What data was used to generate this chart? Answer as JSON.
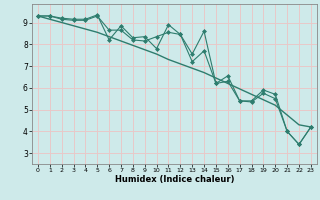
{
  "title": "",
  "xlabel": "Humidex (Indice chaleur)",
  "bg_color": "#ceeaea",
  "grid_color": "#e8c8c8",
  "line_color": "#2e7d6e",
  "xlim": [
    -0.5,
    23.5
  ],
  "ylim": [
    2.5,
    9.85
  ],
  "yticks": [
    3,
    4,
    5,
    6,
    7,
    8,
    9
  ],
  "xticks": [
    0,
    1,
    2,
    3,
    4,
    5,
    6,
    7,
    8,
    9,
    10,
    11,
    12,
    13,
    14,
    15,
    16,
    17,
    18,
    19,
    20,
    21,
    22,
    23
  ],
  "series1": [
    9.3,
    9.3,
    9.2,
    9.15,
    9.15,
    9.35,
    8.2,
    8.85,
    8.3,
    8.35,
    7.8,
    8.9,
    8.45,
    7.2,
    7.7,
    6.2,
    6.3,
    5.4,
    5.4,
    5.9,
    5.7,
    4.0,
    3.4,
    4.2
  ],
  "series2": [
    9.3,
    9.3,
    9.15,
    9.1,
    9.1,
    9.3,
    8.65,
    8.65,
    8.2,
    8.15,
    8.35,
    8.55,
    8.45,
    7.55,
    8.6,
    6.2,
    6.55,
    5.4,
    5.35,
    5.75,
    5.5,
    4.0,
    3.4,
    4.2
  ],
  "trend": [
    9.3,
    9.15,
    9.0,
    8.85,
    8.7,
    8.55,
    8.35,
    8.15,
    7.95,
    7.75,
    7.55,
    7.3,
    7.1,
    6.9,
    6.7,
    6.45,
    6.2,
    5.95,
    5.7,
    5.45,
    5.2,
    4.75,
    4.3,
    4.2
  ]
}
